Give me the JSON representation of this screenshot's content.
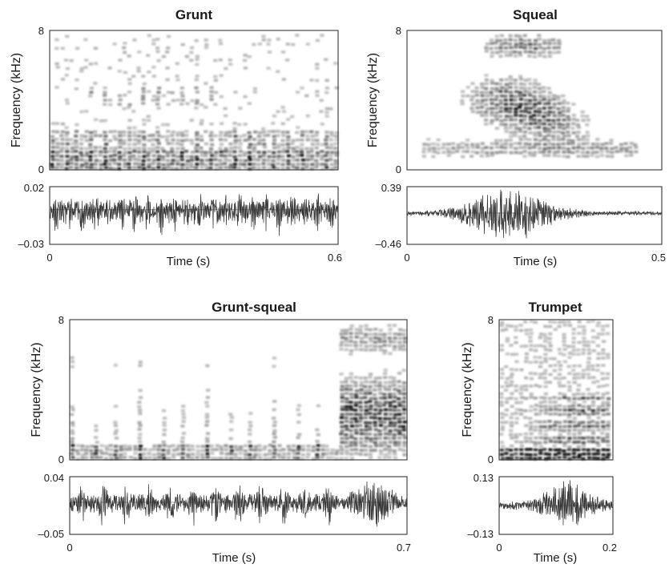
{
  "chart_data": [
    {
      "type": "spectrogram",
      "title": "Grunt",
      "ylabel": "Frequency (kHz)",
      "ylim": [
        0,
        8
      ],
      "yticks": [
        "0",
        "8"
      ],
      "xlabel": "Time (s)",
      "xlim": [
        0,
        0.6
      ],
      "xticks": [
        "0",
        "0.6"
      ],
      "waveform": {
        "ylim": [
          -0.03,
          0.02
        ],
        "yticks": [
          "0.02",
          "–0.03"
        ]
      }
    },
    {
      "type": "spectrogram",
      "title": "Squeal",
      "ylabel": "Frequency (kHz)",
      "ylim": [
        0,
        8
      ],
      "yticks": [
        "0",
        "8"
      ],
      "xlabel": "Time (s)",
      "xlim": [
        0,
        0.5
      ],
      "xticks": [
        "0",
        "0.5"
      ],
      "waveform": {
        "ylim": [
          -0.46,
          0.39
        ],
        "yticks": [
          "0.39",
          "–0.46"
        ]
      }
    },
    {
      "type": "spectrogram",
      "title": "Grunt-squeal",
      "ylabel": "Frequency (kHz)",
      "ylim": [
        0,
        8
      ],
      "yticks": [
        "0",
        "8"
      ],
      "xlabel": "Time (s)",
      "xlim": [
        0,
        0.7
      ],
      "xticks": [
        "0",
        "0.7"
      ],
      "waveform": {
        "ylim": [
          -0.05,
          0.04
        ],
        "yticks": [
          "0.04",
          "–0.05"
        ]
      }
    },
    {
      "type": "spectrogram",
      "title": "Trumpet",
      "ylabel": "Frequency (kHz)",
      "ylim": [
        0,
        8
      ],
      "yticks": [
        "0",
        "8"
      ],
      "xlabel": "Time (s)",
      "xlim": [
        0,
        0.2
      ],
      "xticks": [
        "0",
        "0.2"
      ],
      "waveform": {
        "ylim": [
          -0.13,
          0.13
        ],
        "yticks": [
          "0.13",
          "–0.13"
        ]
      }
    }
  ]
}
